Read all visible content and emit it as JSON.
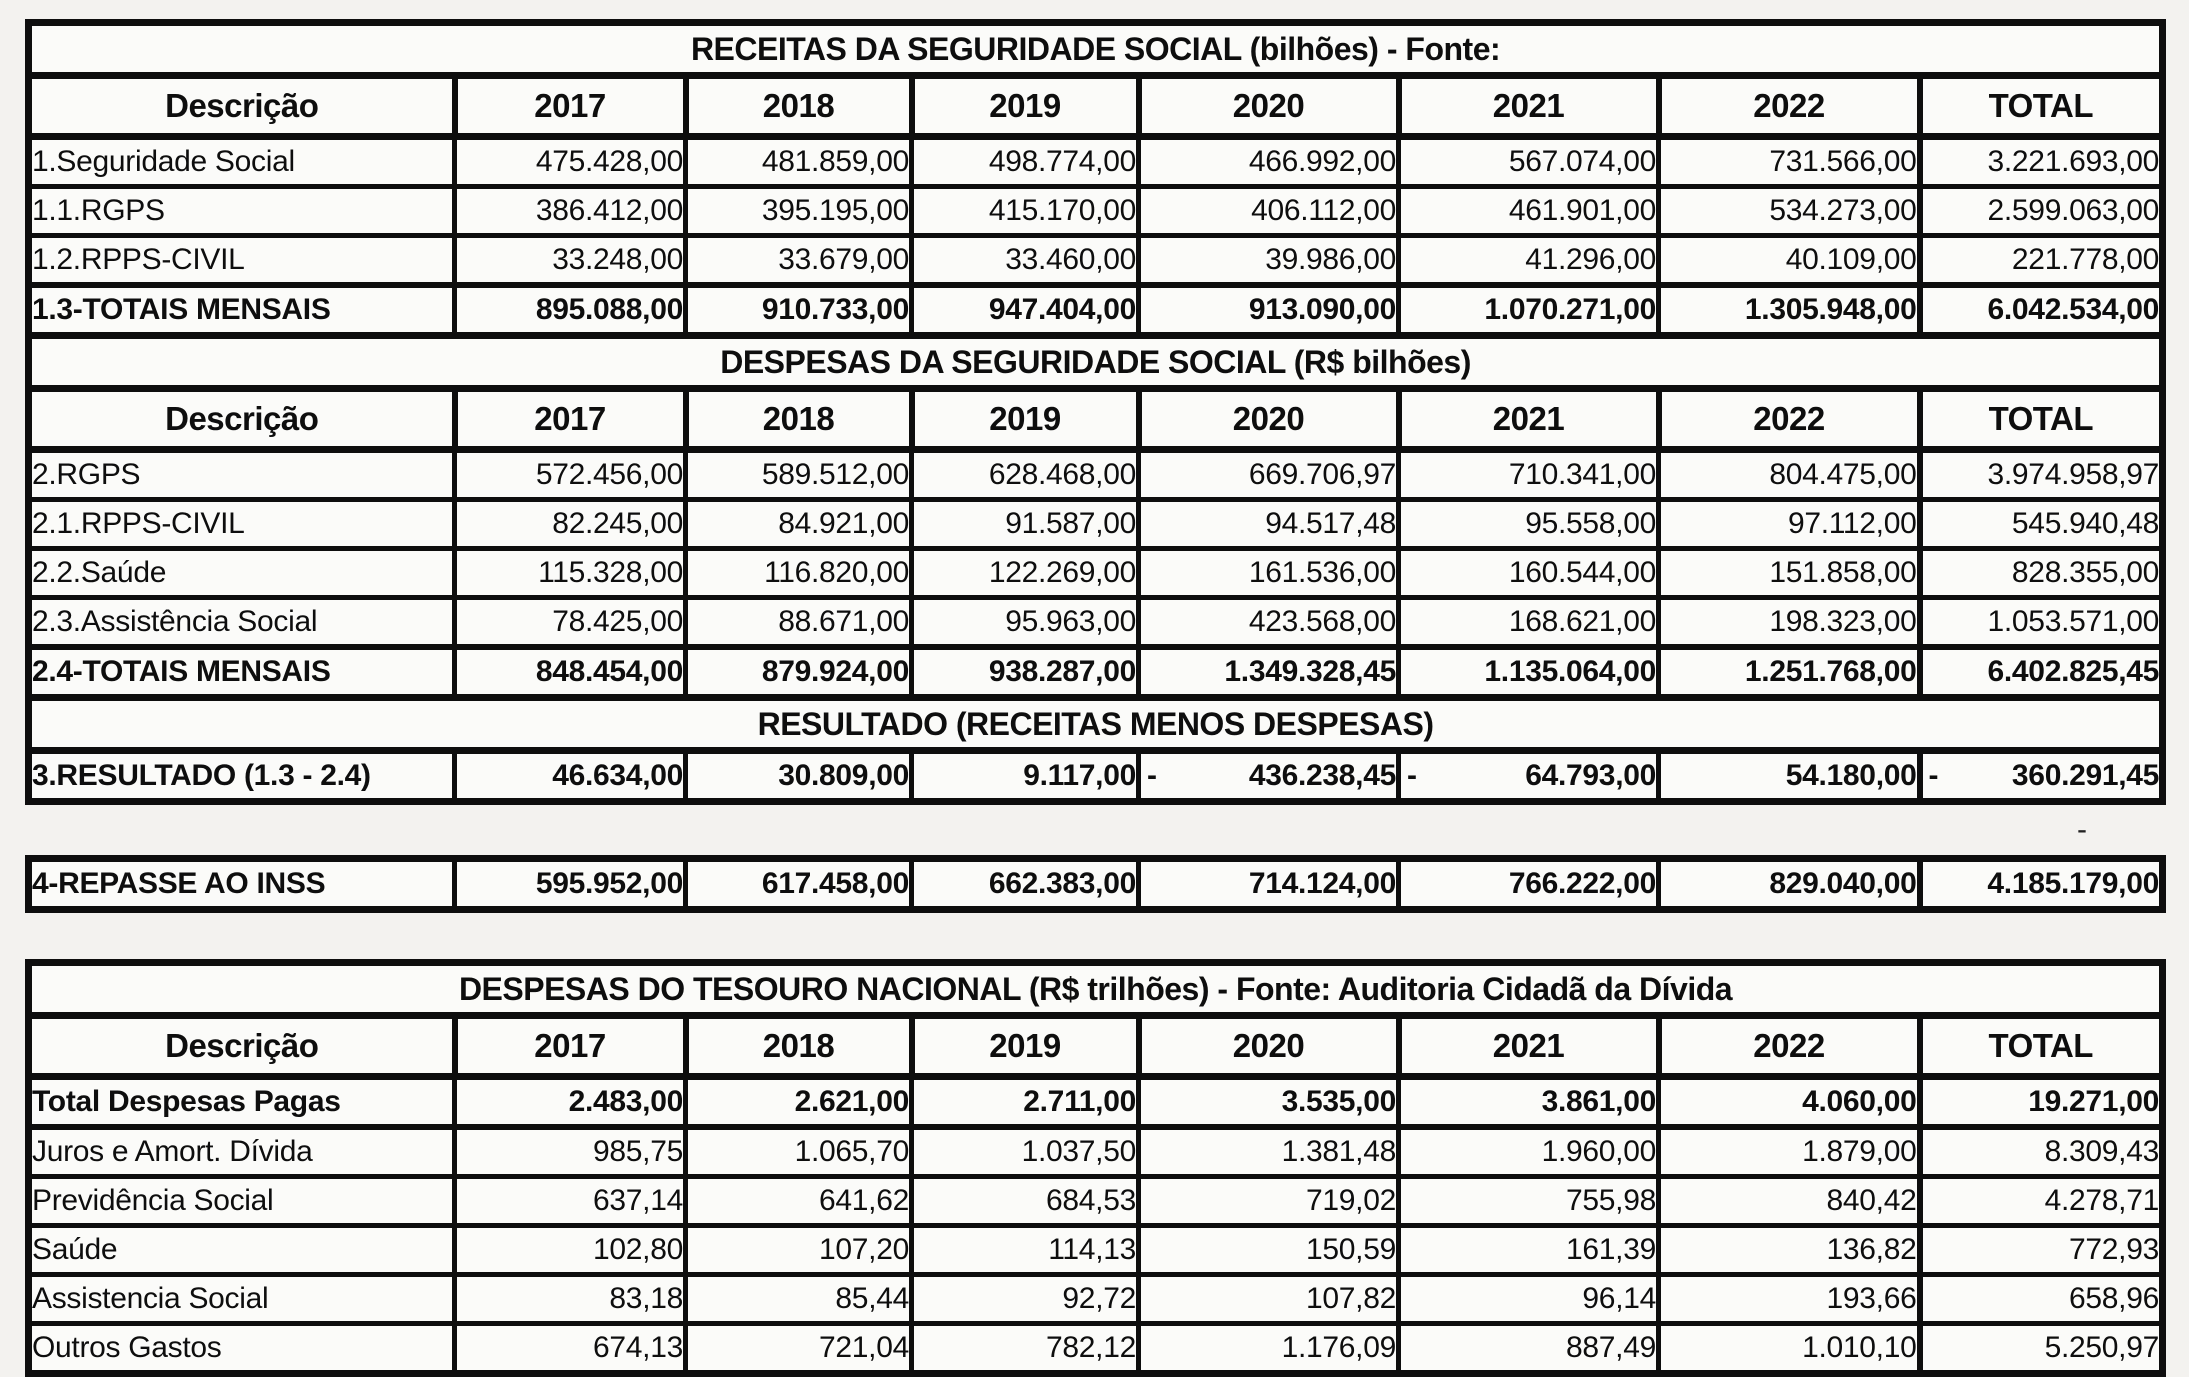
{
  "columns": [
    "Descrição",
    "2017",
    "2018",
    "2019",
    "2020",
    "2021",
    "2022",
    "TOTAL"
  ],
  "receitas": {
    "title": "RECEITAS DA SEGURIDADE SOCIAL (bilhões) - Fonte:",
    "rows": [
      {
        "label": "1.Seguridade Social",
        "bold": false,
        "values": [
          "475.428,00",
          "481.859,00",
          "498.774,00",
          "466.992,00",
          "567.074,00",
          "731.566,00",
          "3.221.693,00"
        ]
      },
      {
        "label": "1.1.RGPS",
        "bold": false,
        "values": [
          "386.412,00",
          "395.195,00",
          "415.170,00",
          "406.112,00",
          "461.901,00",
          "534.273,00",
          "2.599.063,00"
        ]
      },
      {
        "label": "1.2.RPPS-CIVIL",
        "bold": false,
        "values": [
          "33.248,00",
          "33.679,00",
          "33.460,00",
          "39.986,00",
          "41.296,00",
          "40.109,00",
          "221.778,00"
        ]
      },
      {
        "label": "1.3-TOTAIS MENSAIS",
        "bold": true,
        "values": [
          "895.088,00",
          "910.733,00",
          "947.404,00",
          "913.090,00",
          "1.070.271,00",
          "1.305.948,00",
          "6.042.534,00"
        ]
      }
    ]
  },
  "despesas": {
    "title": "DESPESAS DA SEGURIDADE SOCIAL  (R$ bilhões)",
    "rows": [
      {
        "label": "2.RGPS",
        "bold": false,
        "values": [
          "572.456,00",
          "589.512,00",
          "628.468,00",
          "669.706,97",
          "710.341,00",
          "804.475,00",
          "3.974.958,97"
        ]
      },
      {
        "label": "2.1.RPPS-CIVIL",
        "bold": false,
        "values": [
          "82.245,00",
          "84.921,00",
          "91.587,00",
          "94.517,48",
          "95.558,00",
          "97.112,00",
          "545.940,48"
        ]
      },
      {
        "label": "2.2.Saúde",
        "bold": false,
        "values": [
          "115.328,00",
          "116.820,00",
          "122.269,00",
          "161.536,00",
          "160.544,00",
          "151.858,00",
          "828.355,00"
        ]
      },
      {
        "label": "2.3.Assistência Social",
        "bold": false,
        "values": [
          "78.425,00",
          "88.671,00",
          "95.963,00",
          "423.568,00",
          "168.621,00",
          "198.323,00",
          "1.053.571,00"
        ]
      },
      {
        "label": "2.4-TOTAIS MENSAIS",
        "bold": true,
        "values": [
          "848.454,00",
          "879.924,00",
          "938.287,00",
          "1.349.328,45",
          "1.135.064,00",
          "1.251.768,00",
          "6.402.825,45"
        ]
      }
    ]
  },
  "resultado": {
    "title": "RESULTADO (RECEITAS MENOS DESPESAS)",
    "rows": [
      {
        "label": "3.RESULTADO (1.3 - 2.4)",
        "bold": true,
        "values": [
          "46.634,00",
          "30.809,00",
          "9.117,00",
          {
            "neg": true,
            "text": "436.238,45"
          },
          {
            "neg": true,
            "text": "64.793,00"
          },
          "54.180,00",
          {
            "neg": true,
            "text": "360.291,45"
          }
        ]
      }
    ]
  },
  "stray_dash": "-",
  "repasse": {
    "rows": [
      {
        "label": "4-REPASSE AO INSS",
        "bold": true,
        "values": [
          "595.952,00",
          "617.458,00",
          "662.383,00",
          "714.124,00",
          "766.222,00",
          "829.040,00",
          "4.185.179,00"
        ]
      }
    ]
  },
  "tesouro": {
    "title": "DESPESAS DO TESOURO NACIONAL (R$ trilhões) - Fonte: Auditoria Cidadã da Dívida",
    "rows": [
      {
        "label": "Total Despesas Pagas",
        "bold": true,
        "values": [
          "2.483,00",
          "2.621,00",
          "2.711,00",
          "3.535,00",
          "3.861,00",
          "4.060,00",
          "19.271,00"
        ]
      },
      {
        "label": "Juros e Amort. Dívida",
        "bold": false,
        "values": [
          "985,75",
          "1.065,70",
          "1.037,50",
          "1.381,48",
          "1.960,00",
          "1.879,00",
          "8.309,43"
        ]
      },
      {
        "label": "Previdência Social",
        "bold": false,
        "values": [
          "637,14",
          "641,62",
          "684,53",
          "719,02",
          "755,98",
          "840,42",
          "4.278,71"
        ]
      },
      {
        "label": "Saúde",
        "bold": false,
        "values": [
          "102,80",
          "107,20",
          "114,13",
          "150,59",
          "161,39",
          "136,82",
          "772,93"
        ]
      },
      {
        "label": "Assistencia Social",
        "bold": false,
        "values": [
          "83,18",
          "85,44",
          "92,72",
          "107,82",
          "96,14",
          "193,66",
          "658,96"
        ]
      },
      {
        "label": "Outros Gastos",
        "bold": false,
        "values": [
          "674,13",
          "721,04",
          "782,12",
          "1.176,09",
          "887,49",
          "1.010,10",
          "5.250,97"
        ]
      }
    ]
  }
}
